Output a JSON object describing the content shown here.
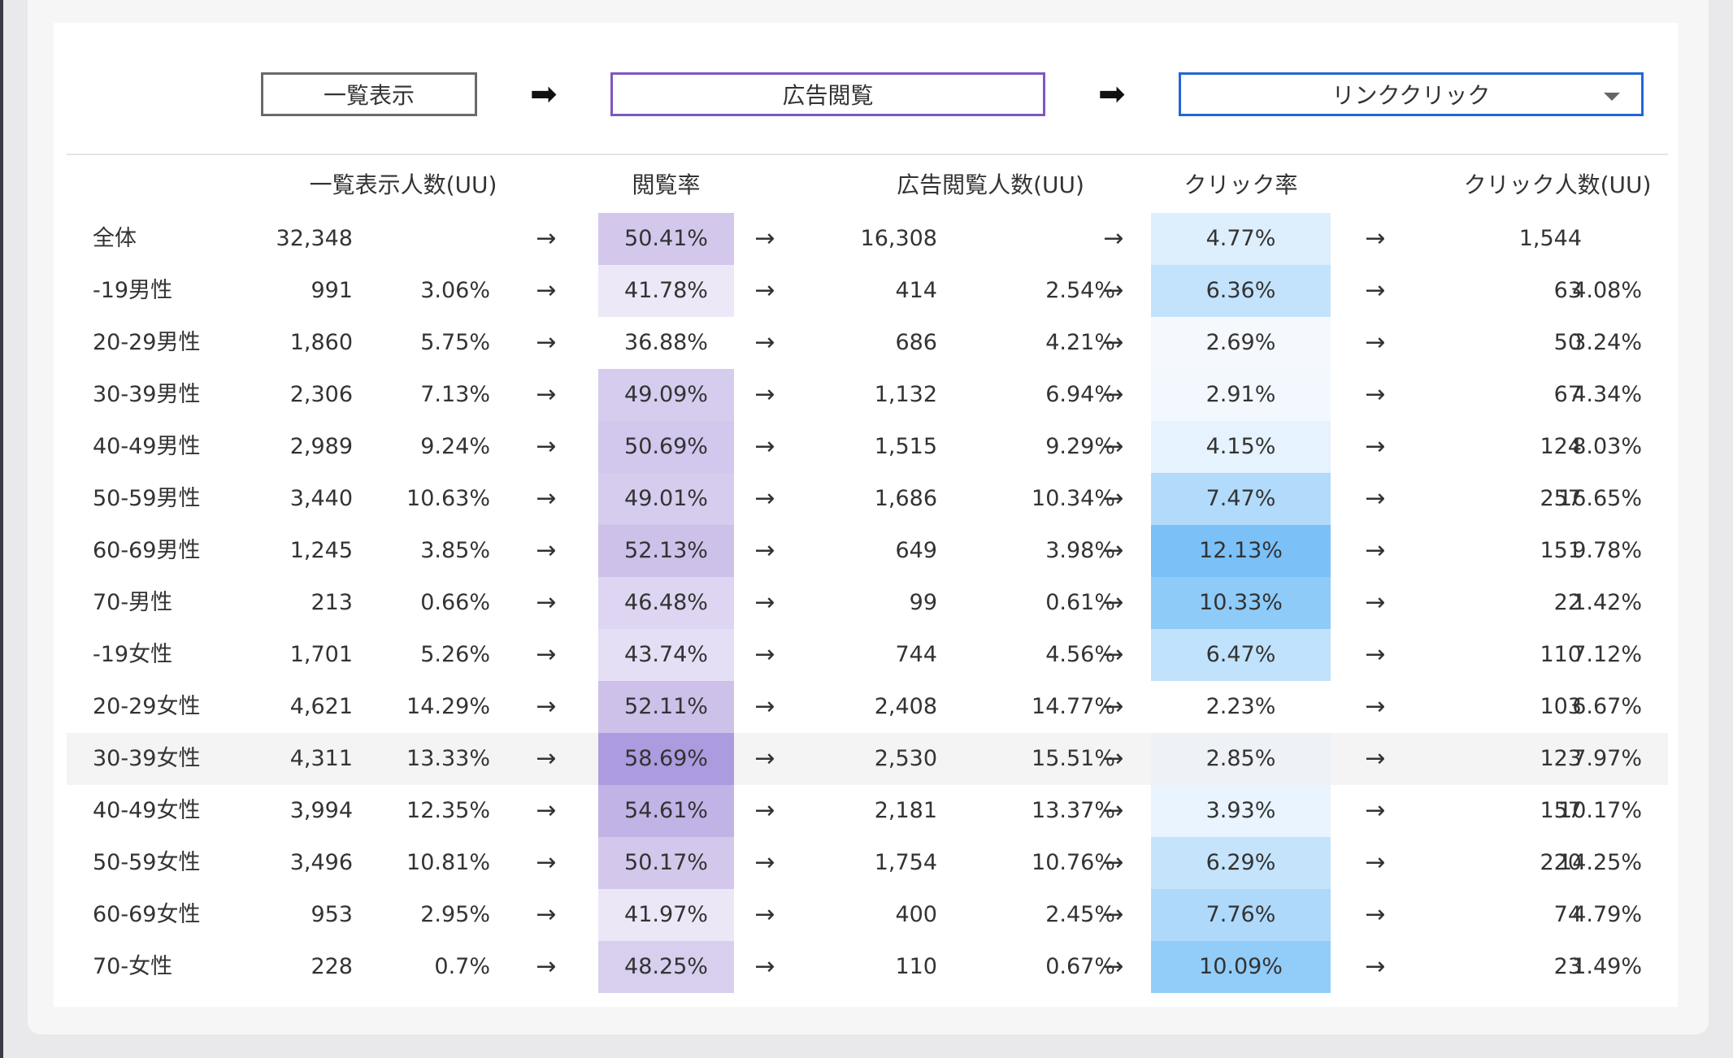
{
  "funnel": {
    "stages": [
      {
        "label": "一覧表示"
      },
      {
        "label": "広告閲覧"
      },
      {
        "label": "リンククリック"
      }
    ],
    "arrow": "➡"
  },
  "table": {
    "headers": {
      "list_uu": "一覧表示人数(UU)",
      "view_rate": "閲覧率",
      "ad_uu": "広告閲覧人数(UU)",
      "click_rate": "クリック率",
      "click_uu": "クリック人数(UU)"
    },
    "arrow": "→",
    "rows": [
      {
        "label": "全体",
        "list_uu": "32,348",
        "list_pct": "",
        "view_rate": "50.41%",
        "view_rate_bg": "#d3c8ec",
        "ad_uu": "16,308",
        "ad_pct": "",
        "click_rate": "4.77%",
        "click_rate_bg": "#ddeefd",
        "click_uu": "1,544",
        "click_pct": ""
      },
      {
        "label": "-19男性",
        "list_uu": "991",
        "list_pct": "3.06%",
        "view_rate": "41.78%",
        "view_rate_bg": "#ece8f7",
        "ad_uu": "414",
        "ad_pct": "2.54%",
        "click_rate": "6.36%",
        "click_rate_bg": "#c3e3fc",
        "click_uu": "63",
        "click_pct": "4.08%"
      },
      {
        "label": "20-29男性",
        "list_uu": "1,860",
        "list_pct": "5.75%",
        "view_rate": "36.88%",
        "view_rate_bg": "#ffffff",
        "ad_uu": "686",
        "ad_pct": "4.21%",
        "click_rate": "2.69%",
        "click_rate_bg": "#f5f9fe",
        "click_uu": "50",
        "click_pct": "3.24%"
      },
      {
        "label": "30-39男性",
        "list_uu": "2,306",
        "list_pct": "7.13%",
        "view_rate": "49.09%",
        "view_rate_bg": "#d6ccee",
        "ad_uu": "1,132",
        "ad_pct": "6.94%",
        "click_rate": "2.91%",
        "click_rate_bg": "#f3f8fe",
        "click_uu": "67",
        "click_pct": "4.34%"
      },
      {
        "label": "40-49男性",
        "list_uu": "2,989",
        "list_pct": "9.24%",
        "view_rate": "50.69%",
        "view_rate_bg": "#d2c7ec",
        "ad_uu": "1,515",
        "ad_pct": "9.29%",
        "click_rate": "4.15%",
        "click_rate_bg": "#e6f2fd",
        "click_uu": "124",
        "click_pct": "8.03%"
      },
      {
        "label": "50-59男性",
        "list_uu": "3,440",
        "list_pct": "10.63%",
        "view_rate": "49.01%",
        "view_rate_bg": "#d6ccee",
        "ad_uu": "1,686",
        "ad_pct": "10.34%",
        "click_rate": "7.47%",
        "click_rate_bg": "#b2dbfb",
        "click_uu": "257",
        "click_pct": "16.65%"
      },
      {
        "label": "60-69男性",
        "list_uu": "1,245",
        "list_pct": "3.85%",
        "view_rate": "52.13%",
        "view_rate_bg": "#cdc1ea",
        "ad_uu": "649",
        "ad_pct": "3.98%",
        "click_rate": "12.13%",
        "click_rate_bg": "#7bc1f8",
        "click_uu": "151",
        "click_pct": "9.78%"
      },
      {
        "label": "70-男性",
        "list_uu": "213",
        "list_pct": "0.66%",
        "view_rate": "46.48%",
        "view_rate_bg": "#ddd5f1",
        "ad_uu": "99",
        "ad_pct": "0.61%",
        "click_rate": "10.33%",
        "click_rate_bg": "#8ecbf9",
        "click_uu": "22",
        "click_pct": "1.42%"
      },
      {
        "label": "-19女性",
        "list_uu": "1,701",
        "list_pct": "5.26%",
        "view_rate": "43.74%",
        "view_rate_bg": "#e5dff5",
        "ad_uu": "744",
        "ad_pct": "4.56%",
        "click_rate": "6.47%",
        "click_rate_bg": "#c1e2fc",
        "click_uu": "110",
        "click_pct": "7.12%"
      },
      {
        "label": "20-29女性",
        "list_uu": "4,621",
        "list_pct": "14.29%",
        "view_rate": "52.11%",
        "view_rate_bg": "#cdc1ea",
        "ad_uu": "2,408",
        "ad_pct": "14.77%",
        "click_rate": "2.23%",
        "click_rate_bg": "#ffffff",
        "click_uu": "103",
        "click_pct": "6.67%"
      },
      {
        "label": "30-39女性",
        "list_uu": "4,311",
        "list_pct": "13.33%",
        "view_rate": "58.69%",
        "view_rate_bg": "#ad9be0",
        "ad_uu": "2,530",
        "ad_pct": "15.51%",
        "click_rate": "2.85%",
        "click_rate_bg": "#eef2f7",
        "click_uu": "123",
        "click_pct": "7.97%",
        "highlight": true
      },
      {
        "label": "40-49女性",
        "list_uu": "3,994",
        "list_pct": "12.35%",
        "view_rate": "54.61%",
        "view_rate_bg": "#c1b3e6",
        "ad_uu": "2,181",
        "ad_pct": "13.37%",
        "click_rate": "3.93%",
        "click_rate_bg": "#e9f4fe",
        "click_uu": "157",
        "click_pct": "10.17%"
      },
      {
        "label": "50-59女性",
        "list_uu": "3,496",
        "list_pct": "10.81%",
        "view_rate": "50.17%",
        "view_rate_bg": "#d3c8ec",
        "ad_uu": "1,754",
        "ad_pct": "10.76%",
        "click_rate": "6.29%",
        "click_rate_bg": "#c5e4fc",
        "click_uu": "220",
        "click_pct": "14.25%"
      },
      {
        "label": "60-69女性",
        "list_uu": "953",
        "list_pct": "2.95%",
        "view_rate": "41.97%",
        "view_rate_bg": "#ebe7f7",
        "ad_uu": "400",
        "ad_pct": "2.45%",
        "click_rate": "7.76%",
        "click_rate_bg": "#afd9fb",
        "click_uu": "74",
        "click_pct": "4.79%"
      },
      {
        "label": "70-女性",
        "list_uu": "228",
        "list_pct": "0.7%",
        "view_rate": "48.25%",
        "view_rate_bg": "#d8cfef",
        "ad_uu": "110",
        "ad_pct": "0.67%",
        "click_rate": "10.09%",
        "click_rate_bg": "#92cdf9",
        "click_uu": "23",
        "click_pct": "1.49%"
      }
    ]
  }
}
